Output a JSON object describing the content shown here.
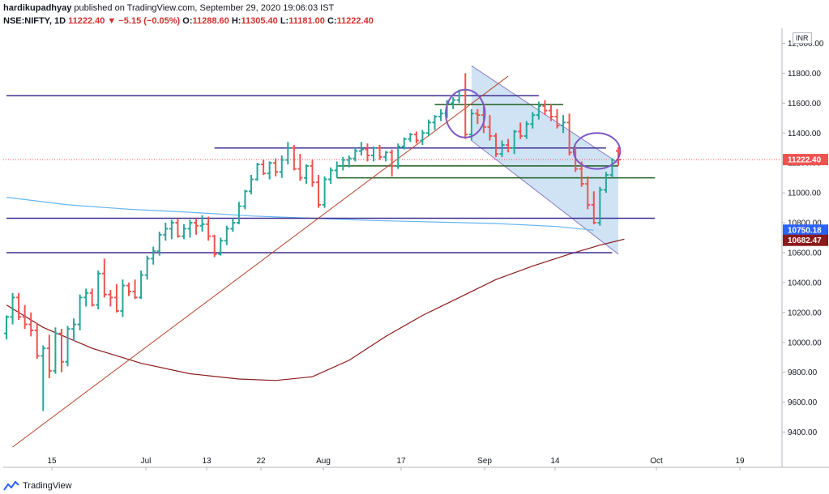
{
  "header": {
    "publisher": "hardikupadhyay",
    "published_text": "published on TradingView.com, September 29, 2020 19:06:03 IST",
    "symbol": "NSE:NIFTY, 1D",
    "last": "11222.40",
    "change_arrow": "▼",
    "change": "−5.15 (−0.05%)",
    "open_label": "O:",
    "open": "11288.60",
    "high_label": "H:",
    "high": "11305.40",
    "low_label": "L:",
    "low": "11181.00",
    "close_label": "C:",
    "close": "11222.40"
  },
  "currency_badge": "INR",
  "footer": {
    "brand": "TradingView",
    "logo_icon": "tradingview-logo-icon"
  },
  "colors": {
    "up": "#26a69a",
    "down": "#ef5350",
    "hline": "#3f2f8f",
    "trend": "#b5442c",
    "ma_long": "#8b1a1a",
    "ma_mid": "#64b5f6",
    "channel_fill": "#bfd9f2",
    "channel_line": "#8e7cc3",
    "green_line": "#1e5e1e",
    "circle": "#7e57c2",
    "last_price_bg": "#ef5350",
    "ma_mid_bg": "#2962ff",
    "ma_long_bg": "#8b1a1a"
  },
  "chart_data": {
    "type": "ohlc",
    "ylim": [
      9300,
      12100
    ],
    "y_ticks": [
      "12,000.00",
      "11800.00",
      "11600.00",
      "11400.00",
      "11200.00",
      "11000.00",
      "10800.00",
      "10600.00",
      "10400.00",
      "10200.00",
      "10000.00",
      "9800.00",
      "9600.00",
      "9400.00"
    ],
    "y_tick_values": [
      12000,
      11800,
      11600,
      11400,
      11200,
      11000,
      10800,
      10600,
      10400,
      10200,
      10000,
      9800,
      9600,
      9400
    ],
    "x_ticks": [
      "15",
      "Jul",
      "13",
      "22",
      "Aug",
      "17",
      "Sep",
      "14",
      "Oct",
      "19"
    ],
    "price_labels": [
      {
        "text": "11222.40",
        "value": 11222.4,
        "kind": "last"
      },
      {
        "text": "10750.18",
        "value": 10750.18,
        "kind": "ma_mid"
      },
      {
        "text": "10682.47",
        "value": 10682.47,
        "kind": "ma_long"
      }
    ],
    "series": [
      {
        "kind": "ohlc",
        "values": [
          [
            10060,
            10180,
            10020,
            10170
          ],
          [
            10170,
            10330,
            10120,
            10300
          ],
          [
            10300,
            10330,
            10150,
            10170
          ],
          [
            10170,
            10250,
            10090,
            10120
          ],
          [
            10120,
            10200,
            10040,
            10080
          ],
          [
            10080,
            10130,
            9890,
            9910
          ],
          [
            9910,
            9980,
            9540,
            9960
          ],
          [
            9960,
            10050,
            9760,
            9810
          ],
          [
            9810,
            10100,
            9790,
            10060
          ],
          [
            10060,
            10090,
            9800,
            9870
          ],
          [
            9870,
            10110,
            9840,
            10090
          ],
          [
            10090,
            10160,
            10010,
            10120
          ],
          [
            10120,
            10320,
            10080,
            10300
          ],
          [
            10300,
            10360,
            10240,
            10330
          ],
          [
            10330,
            10360,
            10240,
            10250
          ],
          [
            10250,
            10480,
            10220,
            10460
          ],
          [
            10460,
            10560,
            10300,
            10320
          ],
          [
            10320,
            10350,
            10240,
            10300
          ],
          [
            10300,
            10390,
            10200,
            10210
          ],
          [
            10210,
            10420,
            10170,
            10380
          ],
          [
            10380,
            10400,
            10310,
            10340
          ],
          [
            10340,
            10420,
            10290,
            10300
          ],
          [
            10300,
            10480,
            10290,
            10450
          ],
          [
            10450,
            10580,
            10420,
            10560
          ],
          [
            10560,
            10640,
            10520,
            10610
          ],
          [
            10610,
            10740,
            10580,
            10720
          ],
          [
            10720,
            10800,
            10680,
            10760
          ],
          [
            10760,
            10820,
            10690,
            10800
          ],
          [
            10800,
            10830,
            10700,
            10710
          ],
          [
            10710,
            10790,
            10690,
            10760
          ],
          [
            10760,
            10820,
            10700,
            10800
          ],
          [
            10800,
            10830,
            10720,
            10780
          ],
          [
            10780,
            10850,
            10740,
            10790
          ],
          [
            10790,
            10840,
            10680,
            10710
          ],
          [
            10710,
            10720,
            10570,
            10590
          ],
          [
            10590,
            10700,
            10580,
            10680
          ],
          [
            10680,
            10780,
            10650,
            10760
          ],
          [
            10760,
            10830,
            10740,
            10800
          ],
          [
            10800,
            10940,
            10790,
            10910
          ],
          [
            10910,
            11020,
            10890,
            11010
          ],
          [
            11010,
            11120,
            10990,
            11090
          ],
          [
            11090,
            11200,
            11080,
            11190
          ],
          [
            11190,
            11220,
            11120,
            11130
          ],
          [
            11130,
            11210,
            11090,
            11200
          ],
          [
            11200,
            11230,
            11110,
            11140
          ],
          [
            11140,
            11250,
            11100,
            11220
          ],
          [
            11220,
            11340,
            11190,
            11300
          ],
          [
            11300,
            11320,
            11150,
            11160
          ],
          [
            11160,
            11260,
            11080,
            11100
          ],
          [
            11100,
            11190,
            11060,
            11180
          ],
          [
            11180,
            11220,
            11040,
            11070
          ],
          [
            11070,
            11120,
            10900,
            10920
          ],
          [
            10920,
            11110,
            10900,
            11090
          ],
          [
            11090,
            11170,
            11060,
            11150
          ],
          [
            11150,
            11210,
            11100,
            11180
          ],
          [
            11180,
            11240,
            11150,
            11220
          ],
          [
            11220,
            11250,
            11170,
            11230
          ],
          [
            11230,
            11300,
            11210,
            11280
          ],
          [
            11280,
            11340,
            11250,
            11290
          ],
          [
            11290,
            11330,
            11210,
            11250
          ],
          [
            11250,
            11310,
            11210,
            11300
          ],
          [
            11300,
            11320,
            11220,
            11240
          ],
          [
            11240,
            11280,
            11210,
            11270
          ],
          [
            11270,
            11290,
            11110,
            11180
          ],
          [
            11180,
            11330,
            11160,
            11310
          ],
          [
            11310,
            11370,
            11290,
            11360
          ],
          [
            11360,
            11400,
            11340,
            11390
          ],
          [
            11390,
            11410,
            11330,
            11350
          ],
          [
            11350,
            11420,
            11320,
            11400
          ],
          [
            11400,
            11490,
            11380,
            11470
          ],
          [
            11470,
            11520,
            11420,
            11510
          ],
          [
            11510,
            11560,
            11480,
            11530
          ],
          [
            11530,
            11620,
            11500,
            11600
          ],
          [
            11600,
            11640,
            11560,
            11620
          ],
          [
            11620,
            11690,
            11600,
            11650
          ],
          [
            11650,
            11800,
            11360,
            11390
          ],
          [
            11390,
            11560,
            11350,
            11530
          ],
          [
            11530,
            11560,
            11460,
            11520
          ],
          [
            11520,
            11580,
            11400,
            11440
          ],
          [
            11440,
            11520,
            11350,
            11380
          ],
          [
            11380,
            11400,
            11240,
            11260
          ],
          [
            11260,
            11350,
            11240,
            11320
          ],
          [
            11320,
            11360,
            11270,
            11300
          ],
          [
            11300,
            11420,
            11260,
            11410
          ],
          [
            11410,
            11470,
            11360,
            11380
          ],
          [
            11380,
            11480,
            11360,
            11460
          ],
          [
            11460,
            11540,
            11430,
            11520
          ],
          [
            11520,
            11610,
            11490,
            11580
          ],
          [
            11580,
            11620,
            11520,
            11550
          ],
          [
            11550,
            11590,
            11480,
            11510
          ],
          [
            11510,
            11560,
            11430,
            11450
          ],
          [
            11450,
            11520,
            11400,
            11470
          ],
          [
            11470,
            11530,
            11250,
            11270
          ],
          [
            11270,
            11310,
            11140,
            11160
          ],
          [
            11160,
            11210,
            11040,
            11060
          ],
          [
            11060,
            11110,
            10890,
            10920
          ],
          [
            10920,
            11010,
            10790,
            10800
          ],
          [
            10800,
            11040,
            10780,
            11020
          ],
          [
            11020,
            11140,
            11000,
            11120
          ],
          [
            11120,
            11230,
            11100,
            11220
          ],
          [
            11280,
            11305,
            11181,
            11222
          ]
        ]
      },
      {
        "kind": "ma_long",
        "values": [
          [
            0,
            10250
          ],
          [
            6,
            10100
          ],
          [
            14,
            9960
          ],
          [
            22,
            9860
          ],
          [
            30,
            9790
          ],
          [
            38,
            9755
          ],
          [
            44,
            9745
          ],
          [
            50,
            9770
          ],
          [
            56,
            9880
          ],
          [
            62,
            10040
          ],
          [
            68,
            10180
          ],
          [
            74,
            10300
          ],
          [
            80,
            10420
          ],
          [
            86,
            10510
          ],
          [
            92,
            10590
          ],
          [
            97,
            10650
          ],
          [
            101,
            10690
          ]
        ]
      },
      {
        "kind": "ma_mid",
        "values": [
          [
            0,
            10970
          ],
          [
            10,
            10920
          ],
          [
            20,
            10890
          ],
          [
            30,
            10870
          ],
          [
            40,
            10845
          ],
          [
            50,
            10830
          ],
          [
            60,
            10815
          ],
          [
            70,
            10805
          ],
          [
            80,
            10795
          ],
          [
            90,
            10775
          ],
          [
            96,
            10750
          ]
        ]
      }
    ],
    "drawings": [
      {
        "kind": "hline",
        "color": "hline",
        "y": 11650,
        "x": [
          0,
          87
        ]
      },
      {
        "kind": "hline",
        "color": "hline",
        "y": 11300,
        "x": [
          34,
          98
        ]
      },
      {
        "kind": "hline",
        "color": "hline",
        "y": 10830,
        "x": [
          0,
          106
        ]
      },
      {
        "kind": "hline",
        "color": "hline",
        "y": 10600,
        "x": [
          0,
          99
        ]
      },
      {
        "kind": "hline",
        "color": "green_line",
        "y": 11590,
        "x": [
          70,
          91
        ]
      },
      {
        "kind": "hline",
        "color": "green_line",
        "y": 11180,
        "x": [
          54,
          100
        ]
      },
      {
        "kind": "hline",
        "color": "green_line",
        "y": 11100,
        "x": [
          54,
          106
        ]
      },
      {
        "kind": "trendline",
        "color": "trend",
        "from": [
          1,
          9300
        ],
        "to": [
          82,
          11780
        ]
      },
      {
        "kind": "channel",
        "upper": [
          [
            76,
            11850
          ],
          [
            100,
            11200
          ]
        ],
        "lower": [
          [
            76,
            11350
          ],
          [
            100,
            10590
          ]
        ]
      },
      {
        "kind": "circle",
        "center": [
          75,
          11530
        ],
        "r": [
          3.2,
          160
        ]
      },
      {
        "kind": "circle",
        "center": [
          96.5,
          11280
        ],
        "r": [
          3.8,
          120
        ]
      }
    ]
  }
}
